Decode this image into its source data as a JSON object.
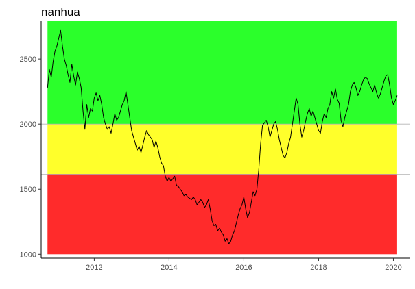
{
  "chart_data": {
    "type": "line",
    "title": "nanhua",
    "xlabel": "",
    "ylabel": "",
    "x_ticks": [
      "2012",
      "2014",
      "2016",
      "2018",
      "2020"
    ],
    "y_ticks": [
      "1000",
      "1500",
      "2000",
      "2500"
    ],
    "xlim": [
      2010.58,
      2020.45
    ],
    "ylim": [
      970,
      2790
    ],
    "grid": false,
    "bands": [
      {
        "from": 2000,
        "to": 2790,
        "color": "#2bff2b"
      },
      {
        "from": 1615,
        "to": 2000,
        "color": "#ffff2b"
      },
      {
        "from": 1000,
        "to": 1615,
        "color": "#ff2b2b"
      }
    ],
    "reference_lines": [
      2000,
      1615
    ],
    "series_color": "#000000",
    "series": [
      {
        "x": [
          2010.75,
          2010.8,
          2010.85,
          2010.9,
          2010.95,
          2011.0,
          2011.05,
          2011.1,
          2011.15,
          2011.2,
          2011.25,
          2011.3,
          2011.35,
          2011.4,
          2011.45,
          2011.5,
          2011.55,
          2011.6,
          2011.65,
          2011.7,
          2011.75,
          2011.8,
          2011.85,
          2011.9,
          2011.95,
          2012.0,
          2012.05,
          2012.1,
          2012.15,
          2012.2,
          2012.25,
          2012.3,
          2012.35,
          2012.4,
          2012.45,
          2012.5,
          2012.55,
          2012.6,
          2012.65,
          2012.7,
          2012.75,
          2012.8,
          2012.85,
          2012.9,
          2012.95,
          2013.0,
          2013.05,
          2013.1,
          2013.15,
          2013.2,
          2013.25,
          2013.3,
          2013.35,
          2013.4,
          2013.45,
          2013.5,
          2013.55,
          2013.6,
          2013.65,
          2013.7,
          2013.75,
          2013.8,
          2013.85,
          2013.9,
          2013.95,
          2014.0,
          2014.05,
          2014.1,
          2014.15,
          2014.2,
          2014.25,
          2014.3,
          2014.35,
          2014.4,
          2014.45,
          2014.5,
          2014.55,
          2014.6,
          2014.65,
          2014.7,
          2014.75,
          2014.8,
          2014.85,
          2014.9,
          2014.95,
          2015.0,
          2015.05,
          2015.1,
          2015.15,
          2015.2,
          2015.25,
          2015.3,
          2015.35,
          2015.4,
          2015.45,
          2015.5,
          2015.55,
          2015.6,
          2015.65,
          2015.7,
          2015.75,
          2015.8,
          2015.85,
          2015.9,
          2015.95,
          2016.0,
          2016.05,
          2016.1,
          2016.15,
          2016.2,
          2016.25,
          2016.3,
          2016.35,
          2016.4,
          2016.45,
          2016.5,
          2016.55,
          2016.6,
          2016.65,
          2016.7,
          2016.75,
          2016.8,
          2016.85,
          2016.9,
          2016.95,
          2017.0,
          2017.05,
          2017.1,
          2017.15,
          2017.2,
          2017.25,
          2017.3,
          2017.35,
          2017.4,
          2017.45,
          2017.5,
          2017.55,
          2017.6,
          2017.65,
          2017.7,
          2017.75,
          2017.8,
          2017.85,
          2017.9,
          2017.95,
          2018.0,
          2018.05,
          2018.1,
          2018.15,
          2018.2,
          2018.25,
          2018.3,
          2018.35,
          2018.4,
          2018.45,
          2018.5,
          2018.55,
          2018.6,
          2018.65,
          2018.7,
          2018.75,
          2018.8,
          2018.85,
          2018.9,
          2018.95,
          2019.0,
          2019.05,
          2019.1,
          2019.15,
          2019.2,
          2019.25,
          2019.3,
          2019.35,
          2019.4,
          2019.45,
          2019.5,
          2019.55,
          2019.6,
          2019.65,
          2019.7,
          2019.75,
          2019.8,
          2019.85,
          2019.9,
          2019.95,
          2020.0,
          2020.05,
          2020.1
        ],
        "values": [
          2280,
          2420,
          2360,
          2480,
          2560,
          2600,
          2660,
          2720,
          2600,
          2500,
          2450,
          2380,
          2320,
          2460,
          2370,
          2300,
          2400,
          2350,
          2280,
          2100,
          1960,
          2150,
          2050,
          2120,
          2100,
          2200,
          2240,
          2180,
          2220,
          2150,
          2050,
          2000,
          1960,
          1980,
          1930,
          2000,
          2080,
          2030,
          2050,
          2100,
          2150,
          2180,
          2250,
          2150,
          2050,
          1950,
          1900,
          1850,
          1800,
          1830,
          1780,
          1840,
          1900,
          1950,
          1920,
          1900,
          1880,
          1820,
          1870,
          1820,
          1750,
          1700,
          1680,
          1600,
          1560,
          1590,
          1560,
          1580,
          1600,
          1530,
          1520,
          1500,
          1480,
          1450,
          1460,
          1440,
          1430,
          1420,
          1440,
          1420,
          1380,
          1400,
          1420,
          1400,
          1360,
          1380,
          1420,
          1350,
          1260,
          1220,
          1230,
          1180,
          1200,
          1170,
          1150,
          1100,
          1120,
          1080,
          1100,
          1150,
          1180,
          1240,
          1300,
          1350,
          1380,
          1440,
          1350,
          1280,
          1320,
          1400,
          1480,
          1450,
          1500,
          1650,
          1850,
          1990,
          2010,
          2030,
          1980,
          1900,
          1950,
          2000,
          2020,
          1960,
          1880,
          1820,
          1760,
          1740,
          1780,
          1850,
          1900,
          2000,
          2100,
          2200,
          2150,
          2000,
          1900,
          1950,
          2020,
          2080,
          2120,
          2060,
          2100,
          2050,
          2000,
          1950,
          1930,
          2020,
          2080,
          2050,
          2120,
          2150,
          2250,
          2200,
          2270,
          2190,
          2160,
          2030,
          1980,
          2050,
          2100,
          2150,
          2250,
          2300,
          2320,
          2280,
          2220,
          2250,
          2300,
          2340,
          2360,
          2350,
          2310,
          2280,
          2250,
          2300,
          2240,
          2200,
          2230,
          2280,
          2330,
          2370,
          2380,
          2300,
          2200,
          2150,
          2180,
          2220
        ]
      }
    ]
  }
}
